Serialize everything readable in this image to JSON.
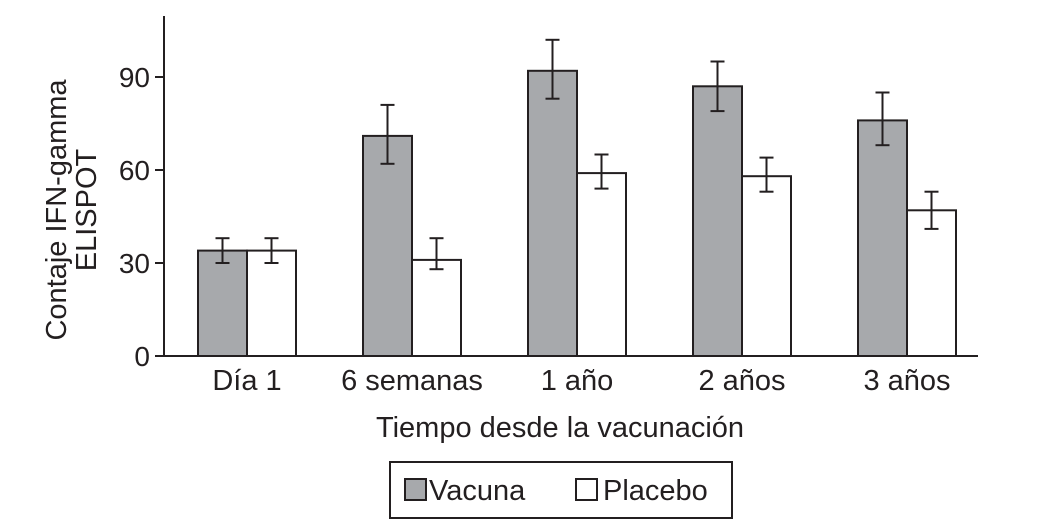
{
  "chart_data": {
    "type": "bar",
    "title": "",
    "xlabel": "Tiempo desde la vacunación",
    "ylabel_lines": [
      "Contaje IFN-gamma",
      "ELISPOT"
    ],
    "categories": [
      "Día 1",
      "6 semanas",
      "1 año",
      "2 años",
      "3 años"
    ],
    "series": [
      {
        "name": "Vacuna",
        "color": "#a7a9ac",
        "values": [
          34,
          71,
          92,
          87,
          76
        ],
        "error_low": [
          30,
          62,
          83,
          79,
          68
        ],
        "error_high": [
          38,
          81,
          102,
          95,
          85
        ]
      },
      {
        "name": "Placebo",
        "color": "#ffffff",
        "values": [
          34,
          31,
          59,
          58,
          47
        ],
        "error_low": [
          30,
          28,
          54,
          53,
          41
        ],
        "error_high": [
          38,
          38,
          65,
          64,
          53
        ]
      }
    ],
    "yticks": [
      0,
      30,
      60,
      90
    ],
    "ylim": [
      0,
      110
    ],
    "grid": false,
    "legend_position": "bottom-center",
    "stroke_color": "#231f20"
  }
}
